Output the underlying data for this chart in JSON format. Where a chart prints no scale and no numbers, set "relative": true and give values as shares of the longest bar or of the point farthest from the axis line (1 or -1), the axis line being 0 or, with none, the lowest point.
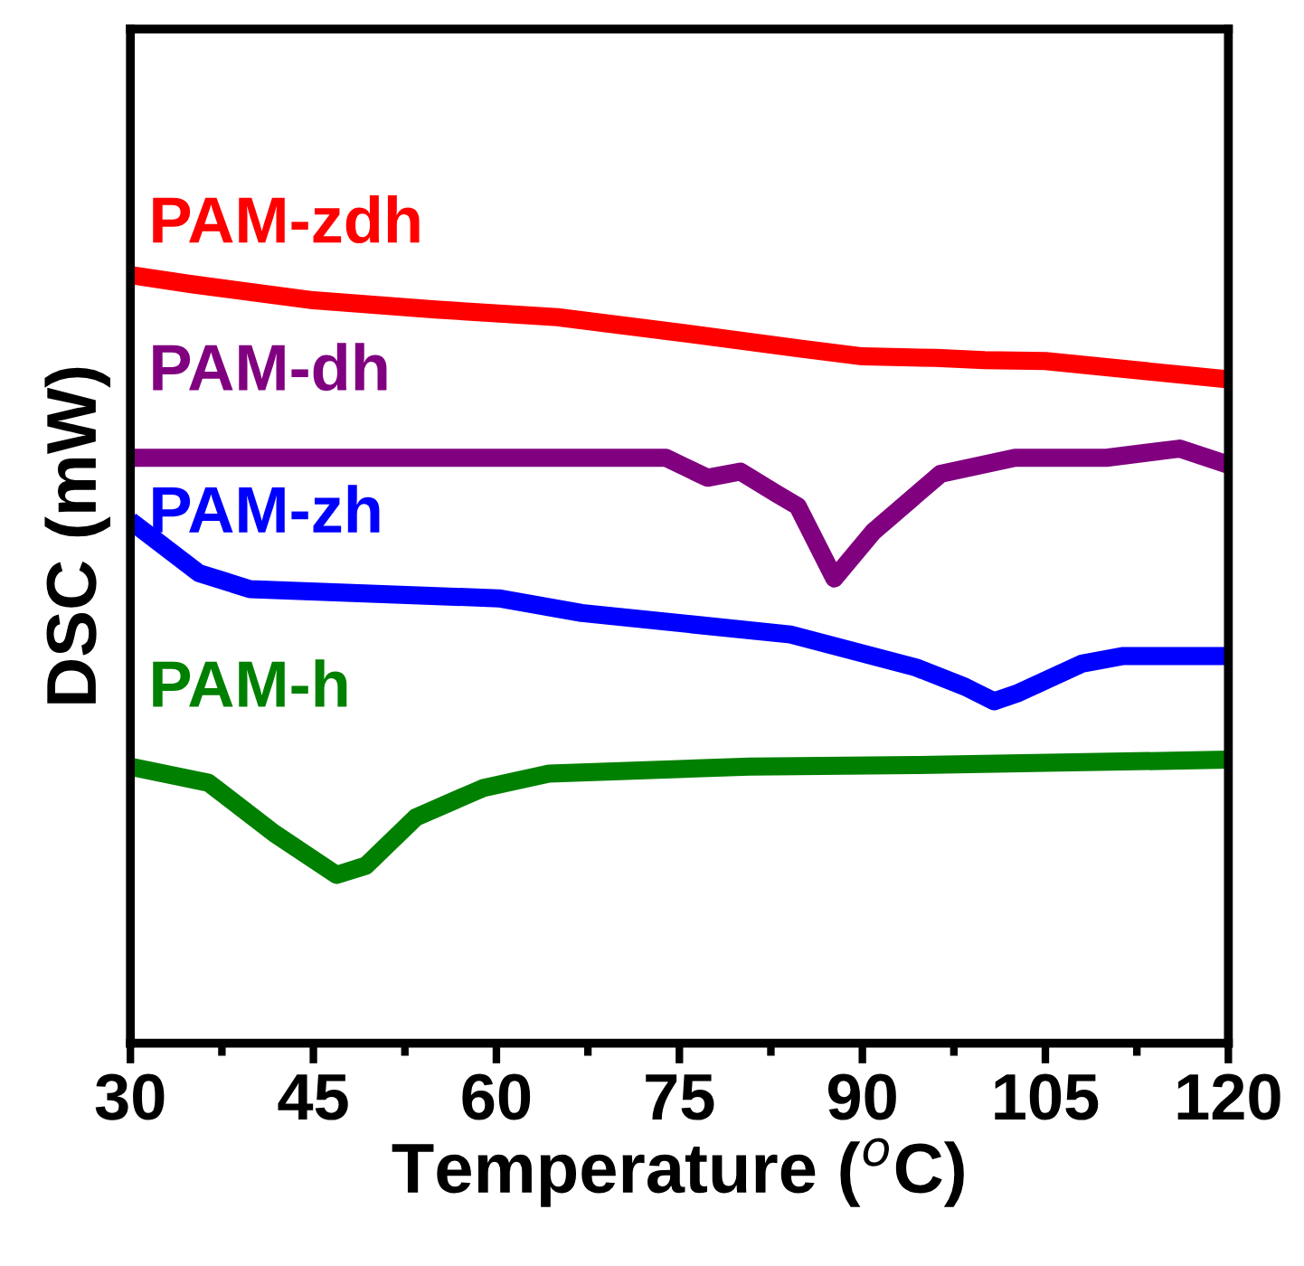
{
  "chart_data": {
    "type": "line",
    "xlabel": "Temperature ($^{o}$C)",
    "ylabel": "DSC (mW)",
    "relative": true,
    "xlim": [
      30,
      120
    ],
    "xticks": [
      30,
      45,
      60,
      75,
      90,
      105,
      120
    ],
    "grid": false,
    "legend": false,
    "marker": "none",
    "line_style": "solid",
    "series": [
      {
        "name": "PAM-zdh",
        "color": "#ff0000",
        "x": [
          30,
          35,
          45,
          55,
          65,
          75,
          85,
          90,
          96,
          100,
          105,
          120
        ],
        "values": [
          1.0,
          0.988,
          0.967,
          0.955,
          0.945,
          0.925,
          0.904,
          0.894,
          0.892,
          0.889,
          0.888,
          0.864
        ]
      },
      {
        "name": "PAM-dh",
        "color": "#800080",
        "x": [
          30,
          50,
          73.9,
          77.3,
          80,
          83,
          84.7,
          87.7,
          90.9,
          96.4,
          102.5,
          110,
          116,
          120
        ],
        "values": [
          0.762,
          0.762,
          0.762,
          0.736,
          0.744,
          0.715,
          0.699,
          0.605,
          0.666,
          0.741,
          0.762,
          0.762,
          0.774,
          0.753
        ]
      },
      {
        "name": "PAM-zh",
        "color": "#0000ff",
        "x": [
          30,
          35.6,
          39.8,
          60.2,
          67,
          84.1,
          94.4,
          98.4,
          100.8,
          102.8,
          108,
          111.4,
          120
        ],
        "values": [
          0.68,
          0.612,
          0.591,
          0.579,
          0.56,
          0.532,
          0.489,
          0.464,
          0.445,
          0.456,
          0.494,
          0.504,
          0.504
        ]
      },
      {
        "name": "PAM-h",
        "color": "#008000",
        "x": [
          30,
          36.4,
          41.8,
          46.9,
          49.3,
          53.4,
          58.9,
          64.3,
          80.7,
          94.4,
          120
        ],
        "values": [
          0.36,
          0.339,
          0.273,
          0.219,
          0.231,
          0.294,
          0.332,
          0.351,
          0.36,
          0.362,
          0.369
        ]
      }
    ]
  }
}
